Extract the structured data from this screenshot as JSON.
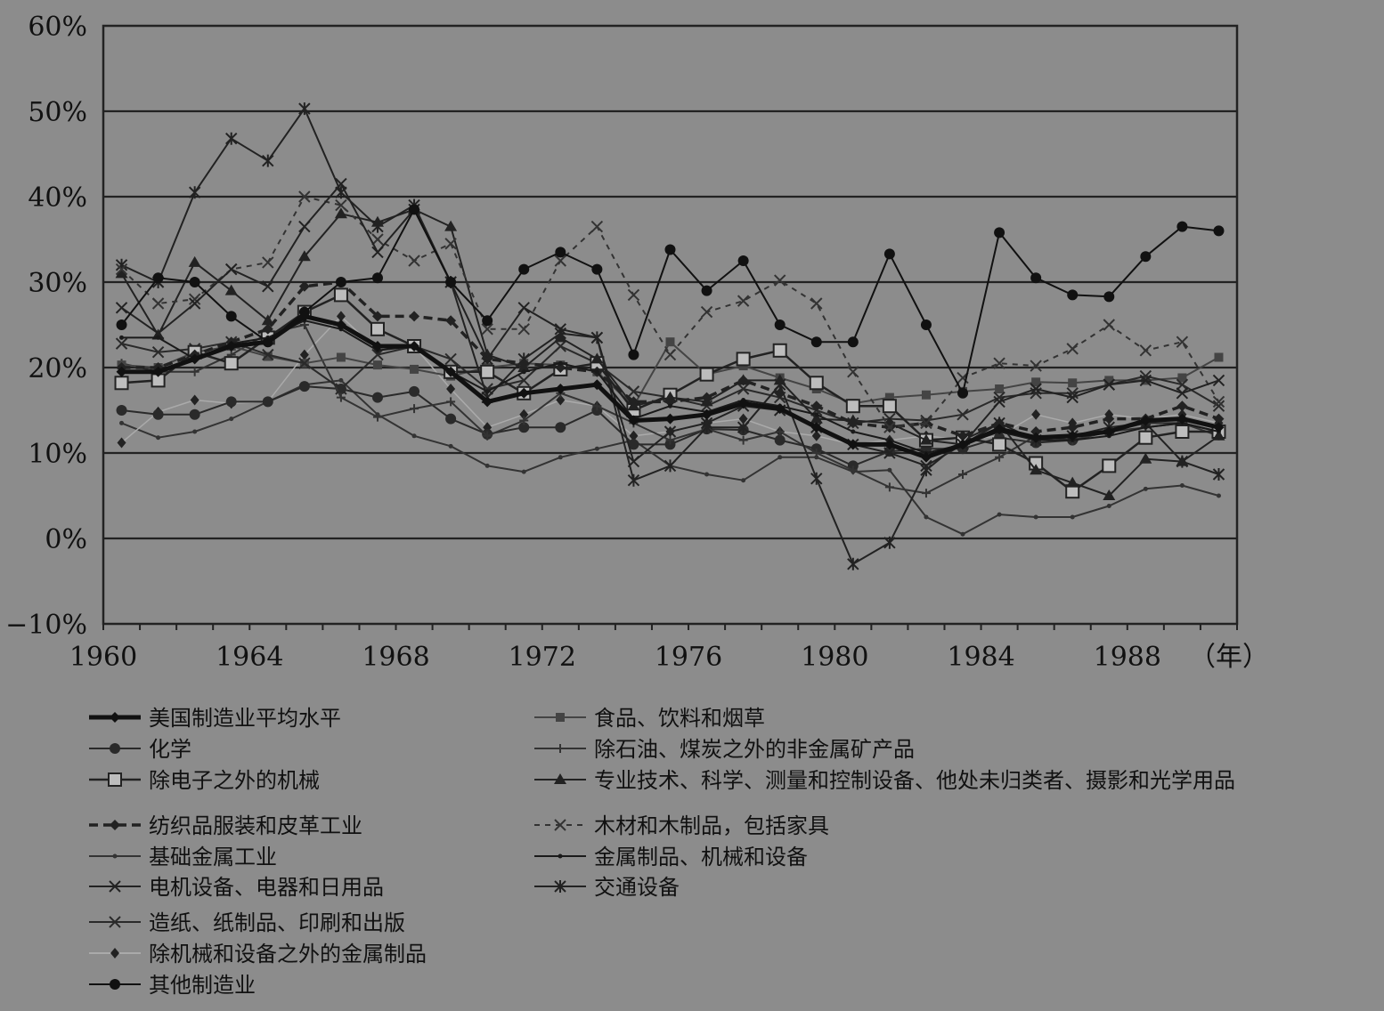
{
  "chart_data": {
    "type": "line",
    "xlabel": "",
    "x_unit_label": "（年）",
    "ylabel": "",
    "ylim": [
      -10,
      60
    ],
    "xlim": [
      1960,
      1991
    ],
    "y_ticks": [
      "60%",
      "50%",
      "40%",
      "30%",
      "20%",
      "10%",
      "0%",
      "−10%"
    ],
    "y_tick_values": [
      60,
      50,
      40,
      30,
      20,
      10,
      0,
      -10
    ],
    "x_ticks": [
      "1960",
      "1964",
      "1968",
      "1972",
      "1976",
      "1980",
      "1984",
      "1988"
    ],
    "x_tick_values": [
      1960,
      1964,
      1968,
      1972,
      1976,
      1980,
      1984,
      1988
    ],
    "grid": true,
    "legend_position": "bottom",
    "x": [
      1960.5,
      1961.5,
      1962.5,
      1963.5,
      1964.5,
      1965.5,
      1966.5,
      1967.5,
      1968.5,
      1969.5,
      1970.5,
      1971.5,
      1972.5,
      1973.5,
      1974.5,
      1975.5,
      1976.5,
      1977.5,
      1978.5,
      1979.5,
      1980.5,
      1981.5,
      1982.5,
      1983.5,
      1984.5,
      1985.5,
      1986.5,
      1987.5,
      1988.5,
      1989.5,
      1990.5
    ],
    "series": [
      {
        "name": "美国制造业平均水平",
        "style": {
          "stroke": "#111111",
          "width": 5,
          "dash": "",
          "marker": "diamond"
        },
        "values": [
          19.5,
          19.5,
          21,
          22.5,
          23,
          26,
          25,
          22.5,
          22.5,
          19.5,
          16,
          17,
          17.5,
          18,
          13.8,
          14,
          14.5,
          15.8,
          15.2,
          13,
          11,
          11,
          9.5,
          11,
          12.8,
          11.8,
          12,
          12.5,
          13.8,
          14,
          13
        ]
      },
      {
        "name": "化学",
        "style": {
          "stroke": "#2a2a2a",
          "width": 2,
          "dash": "",
          "marker": "circle"
        },
        "values": [
          15,
          14.5,
          14.5,
          16,
          16,
          17.8,
          17.5,
          16.5,
          17.2,
          14,
          12.2,
          13,
          13,
          15,
          11,
          11,
          12.8,
          12.7,
          11.5,
          10.5,
          8.5,
          10.2,
          10.5,
          10.5,
          11.8,
          11.2,
          11.5,
          12.5,
          13.5,
          13.5,
          12.5
        ]
      },
      {
        "name": "除电子之外的机械",
        "style": {
          "stroke": "#222222",
          "width": 2.5,
          "dash": "",
          "marker": "square-open"
        },
        "values": [
          18.2,
          18.5,
          21.8,
          20.5,
          23.5,
          26.5,
          28.5,
          24.5,
          22.5,
          19.5,
          19.5,
          17,
          19.8,
          20.5,
          15,
          16.8,
          19.2,
          21,
          22,
          18.2,
          15.5,
          15.5,
          11.5,
          11.8,
          11,
          8.8,
          5.5,
          8.5,
          11.8,
          12.5,
          12.5
        ]
      },
      {
        "name": "纺织品服装和皮革工业",
        "style": {
          "stroke": "#222222",
          "width": 3.5,
          "dash": "10,6",
          "marker": "diamond"
        },
        "values": [
          20,
          20,
          21.5,
          23,
          24.5,
          29.5,
          30,
          26,
          26,
          25.5,
          21,
          20.5,
          20,
          19.5,
          16,
          16,
          16.5,
          18.5,
          17,
          15.5,
          13.5,
          13,
          13.5,
          12,
          13.5,
          12.5,
          13,
          14,
          14,
          15.5,
          14
        ]
      },
      {
        "name": "基础金属工业",
        "style": {
          "stroke": "#333333",
          "width": 2,
          "dash": "",
          "marker": "dot"
        },
        "values": [
          13.5,
          11.8,
          12.5,
          14,
          16,
          18,
          18.5,
          14.5,
          12,
          10.8,
          8.5,
          7.8,
          9.5,
          10.5,
          11.5,
          8.5,
          7.5,
          6.8,
          9.5,
          9.5,
          7.8,
          8,
          2.5,
          0.5,
          2.8,
          2.5,
          2.5,
          3.8,
          5.8,
          6.2,
          5
        ]
      },
      {
        "name": "电机设备、电器和日用品",
        "style": {
          "stroke": "#222222",
          "width": 2,
          "dash": "",
          "marker": "x"
        },
        "values": [
          27,
          24,
          27.5,
          31.5,
          29.5,
          36.5,
          41.5,
          33.5,
          38.5,
          30,
          21,
          27,
          24.5,
          23.5,
          9,
          12.5,
          13.5,
          15.5,
          15,
          13,
          11,
          10,
          8.5,
          11,
          16,
          17.5,
          16.5,
          18,
          18.5,
          17,
          18.5
        ]
      },
      {
        "name": "造纸、纸制品、印刷和出版",
        "style": {
          "stroke": "#2a2a2a",
          "width": 2,
          "dash": "",
          "marker": "x"
        },
        "values": [
          22.8,
          21.8,
          22.2,
          23,
          21.5,
          20.5,
          17.5,
          21.5,
          22.5,
          21,
          17.5,
          18.5,
          22.5,
          20.5,
          17.2,
          16.5,
          15.5,
          17.5,
          16.5,
          15,
          13.5,
          14,
          13.8,
          14.5,
          16.5,
          17,
          17,
          18,
          19,
          18,
          15.5
        ]
      },
      {
        "name": "除机械和设备之外的金属制品",
        "style": {
          "stroke": "#aaaaaa",
          "width": 1.5,
          "dash": "",
          "marker": "diamond-small"
        },
        "values": [
          11.2,
          14.8,
          16.2,
          15.8,
          16,
          21.5,
          26,
          22,
          22.5,
          17.5,
          13,
          14.5,
          16.2,
          15.5,
          12,
          12.5,
          13.5,
          14,
          12.5,
          12,
          11,
          11.5,
          12,
          11.5,
          12,
          14.5,
          13.5,
          14.5,
          14,
          14.5,
          13.5
        ]
      },
      {
        "name": "其他制造业",
        "style": {
          "stroke": "#111111",
          "width": 2,
          "dash": "",
          "marker": "circle"
        },
        "values": [
          25,
          30.5,
          30,
          26,
          23,
          26.5,
          30,
          30.5,
          38.5,
          30,
          25.5,
          31.5,
          33.5,
          31.5,
          21.5,
          33.8,
          29,
          32.5,
          25,
          23,
          23,
          33.3,
          25,
          17,
          35.8,
          30.5,
          28.5,
          28.3,
          33,
          36.5,
          36
        ]
      },
      {
        "name": "食品、饮料和烟草",
        "style": {
          "stroke": "#444444",
          "width": 2,
          "dash": "",
          "marker": "square"
        },
        "values": [
          20.3,
          20,
          21.8,
          22.5,
          21.3,
          20.5,
          21.2,
          20.3,
          19.8,
          19,
          20,
          20.5,
          20.3,
          19.5,
          15.5,
          23,
          19.2,
          20.2,
          18.8,
          17.5,
          15.8,
          16.5,
          16.8,
          17.2,
          17.5,
          18.3,
          18.2,
          18.5,
          18.5,
          18.8,
          21.2
        ]
      },
      {
        "name": "除石油、煤炭之外的非金属矿产品",
        "style": {
          "stroke": "#333333",
          "width": 2,
          "dash": "",
          "marker": "plus"
        },
        "values": [
          20.5,
          19.5,
          19.5,
          21.5,
          24,
          25,
          16.5,
          14.2,
          15.2,
          16,
          12,
          13.8,
          17,
          15.5,
          13.5,
          11.5,
          12.8,
          11.5,
          12.5,
          10,
          8,
          6,
          5.3,
          7.5,
          9.5,
          12,
          11.5,
          12.5,
          13,
          13.5,
          12
        ]
      },
      {
        "name": "专业技术、科学、测量和控制设备、他处未归类者、摄影和光学用品",
        "style": {
          "stroke": "#222222",
          "width": 2,
          "dash": "",
          "marker": "triangle"
        },
        "values": [
          31,
          23.8,
          32.3,
          29,
          25.5,
          33,
          38,
          37,
          38.5,
          36.5,
          21.5,
          20,
          23.5,
          21,
          15.5,
          16.5,
          16,
          18.5,
          18.5,
          14,
          13.8,
          13.5,
          11.5,
          11,
          13.5,
          8,
          6.5,
          5,
          9.3,
          9,
          12
        ]
      },
      {
        "name": "木材和木制品，包括家具",
        "style": {
          "stroke": "#333333",
          "width": 2,
          "dash": "6,6",
          "marker": "x"
        },
        "values": [
          31.5,
          27.5,
          28,
          31.5,
          32.3,
          40,
          39,
          35,
          32.5,
          34.5,
          24.5,
          24.5,
          32.5,
          36.5,
          28.5,
          21.5,
          26.5,
          27.8,
          30.2,
          27.5,
          19.5,
          13,
          13.5,
          18.8,
          20.5,
          20.2,
          22.2,
          25,
          22,
          23,
          16
        ]
      },
      {
        "name": "金属制品、机械和设备",
        "style": {
          "stroke": "#1a1a1a",
          "width": 2,
          "dash": "",
          "marker": "dot"
        },
        "values": [
          23.5,
          23.5,
          21,
          22.8,
          23.5,
          25.5,
          24.5,
          22,
          22.5,
          19.5,
          17.2,
          19.5,
          20.5,
          19.5,
          14,
          15.5,
          14.8,
          16.2,
          15.5,
          14.5,
          12.5,
          11.5,
          10,
          11,
          12.5,
          11.5,
          11.5,
          12,
          13,
          13.5,
          12.5
        ]
      },
      {
        "name": "交通设备",
        "style": {
          "stroke": "#222222",
          "width": 2,
          "dash": "",
          "marker": "asterisk"
        },
        "values": [
          32,
          30,
          40.5,
          46.8,
          44.2,
          50.3,
          40.5,
          36.5,
          39,
          30,
          16.5,
          21,
          24,
          23.5,
          6.8,
          8.5,
          13,
          13,
          18,
          7,
          -3,
          -0.5,
          8,
          11.5,
          13.5,
          11.5,
          12,
          13,
          13.5,
          9,
          7.5
        ]
      }
    ],
    "legend_layout": [
      [
        0,
        9
      ],
      [
        1,
        10
      ],
      [
        2,
        11
      ],
      [
        3,
        12
      ],
      [
        4,
        13
      ],
      [
        5,
        14
      ],
      [
        6,
        null
      ],
      [
        7,
        null
      ],
      [
        8,
        null
      ]
    ]
  }
}
